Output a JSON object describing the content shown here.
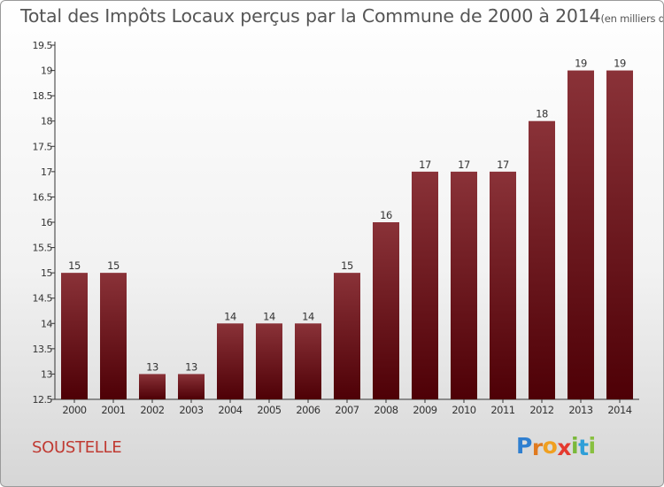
{
  "chart_data": {
    "type": "bar",
    "title": "Total des Impôts Locaux perçus par la Commune de 2000 à 2014",
    "title_unit": "(en milliers d'€)",
    "categories": [
      "2000",
      "2001",
      "2002",
      "2003",
      "2004",
      "2005",
      "2006",
      "2007",
      "2008",
      "2009",
      "2010",
      "2011",
      "2012",
      "2013",
      "2014"
    ],
    "values": [
      15,
      15,
      13,
      13,
      14,
      14,
      14,
      15,
      16,
      17,
      17,
      17,
      18,
      19,
      19
    ],
    "data_labels": [
      "15",
      "15",
      "13",
      "13",
      "14",
      "14",
      "14",
      "15",
      "16",
      "17",
      "17",
      "17",
      "18",
      "19",
      "19"
    ],
    "ylim": [
      12.5,
      19.5
    ],
    "yticks": [
      12.5,
      13,
      13.5,
      14,
      14.5,
      15,
      15.5,
      16,
      16.5,
      17,
      17.5,
      18,
      18.5,
      19,
      19.5
    ],
    "ytick_labels": [
      "12.5",
      "13",
      "13.5",
      "14",
      "14.5",
      "15",
      "15.5",
      "16",
      "16.5",
      "17",
      "17.5",
      "18",
      "18.5",
      "19",
      "19.5"
    ],
    "grid": false,
    "bar_color_top": "#8a3238",
    "bar_color_bottom": "#4e0006"
  },
  "commune_name": "SOUSTELLE",
  "logo": {
    "letters": [
      "P",
      "r",
      "o",
      "x",
      "i",
      "t",
      "i"
    ],
    "colors": [
      "#2f7fd0",
      "#e07a1f",
      "#f0a020",
      "#e53a2f",
      "#7ab83a",
      "#2f9fd8",
      "#88c040"
    ]
  }
}
